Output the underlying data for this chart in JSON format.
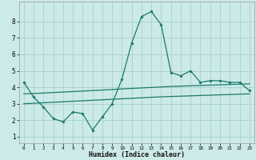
{
  "xlabel": "Humidex (Indice chaleur)",
  "background_color": "#cceae7",
  "grid_color": "#aad4d0",
  "line_color": "#1a7a6e",
  "x_ticks": [
    0,
    1,
    2,
    3,
    4,
    5,
    6,
    7,
    8,
    9,
    10,
    11,
    12,
    13,
    14,
    15,
    16,
    17,
    18,
    19,
    20,
    21,
    22,
    23
  ],
  "y_ticks": [
    1,
    2,
    3,
    4,
    5,
    6,
    7,
    8
  ],
  "xlim": [
    -0.5,
    23.5
  ],
  "ylim": [
    0.6,
    9.2
  ],
  "line1_x": [
    0,
    1,
    2,
    3,
    4,
    5,
    6,
    7,
    8,
    9,
    10,
    11,
    12,
    13,
    14,
    15,
    16,
    17,
    18,
    19,
    20,
    21,
    22,
    23
  ],
  "line1_y": [
    4.3,
    3.4,
    2.8,
    2.1,
    1.9,
    2.5,
    2.4,
    1.4,
    2.2,
    3.0,
    4.5,
    6.7,
    8.3,
    8.6,
    7.8,
    4.9,
    4.7,
    5.0,
    4.3,
    4.4,
    4.4,
    4.3,
    4.3,
    3.8
  ],
  "line2_x": [
    0,
    1,
    2,
    3,
    4,
    5,
    6,
    7,
    8,
    9,
    10,
    11,
    12,
    13,
    14,
    15,
    16,
    17,
    18,
    19,
    20,
    21,
    22,
    23
  ],
  "line2_y": [
    3.6,
    3.62,
    3.65,
    3.68,
    3.71,
    3.74,
    3.77,
    3.8,
    3.83,
    3.86,
    3.9,
    3.93,
    3.96,
    3.99,
    4.02,
    4.05,
    4.07,
    4.09,
    4.11,
    4.13,
    4.15,
    4.17,
    4.19,
    4.21
  ],
  "line3_x": [
    0,
    1,
    2,
    3,
    4,
    5,
    6,
    7,
    8,
    9,
    10,
    11,
    12,
    13,
    14,
    15,
    16,
    17,
    18,
    19,
    20,
    21,
    22,
    23
  ],
  "line3_y": [
    3.0,
    3.03,
    3.06,
    3.09,
    3.12,
    3.15,
    3.18,
    3.21,
    3.24,
    3.27,
    3.3,
    3.33,
    3.36,
    3.39,
    3.42,
    3.44,
    3.46,
    3.48,
    3.5,
    3.52,
    3.54,
    3.56,
    3.58,
    3.6
  ]
}
